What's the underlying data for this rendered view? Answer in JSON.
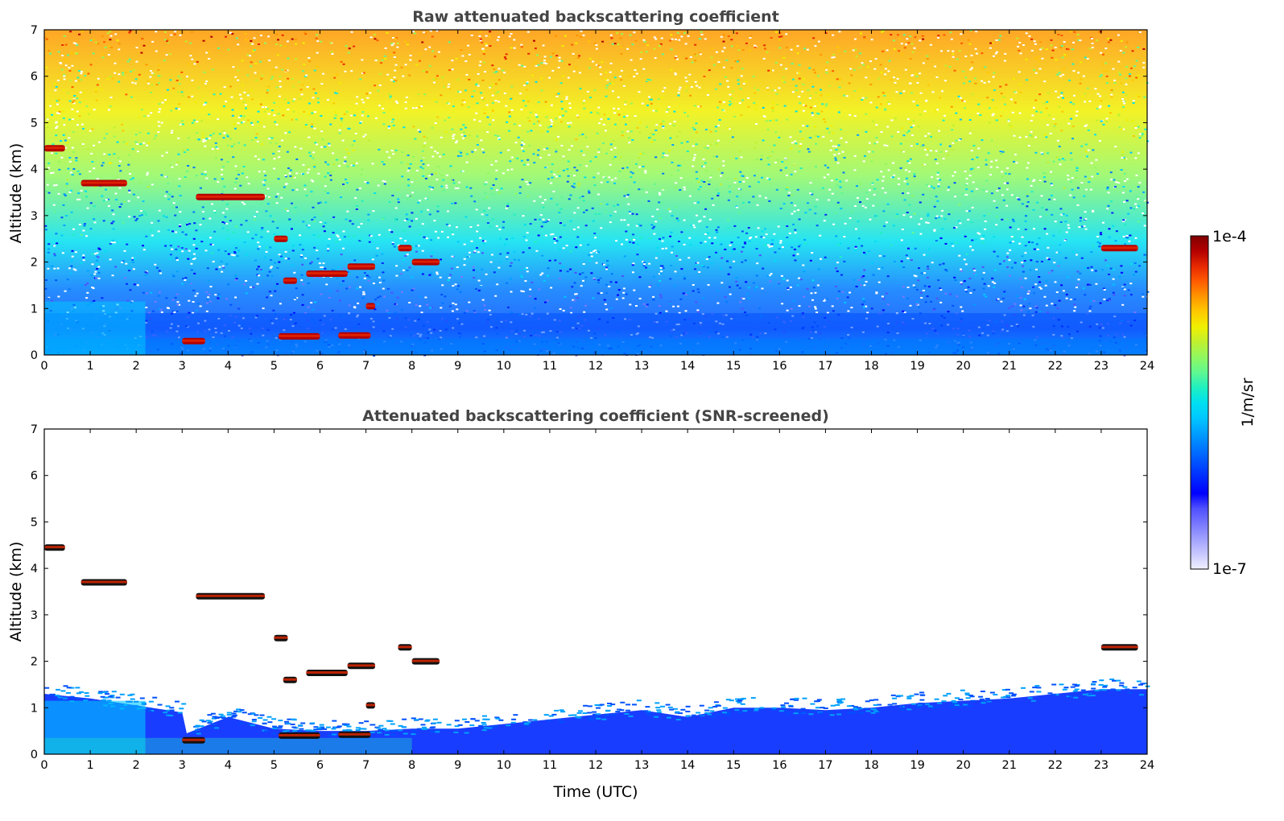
{
  "chart_data": [
    {
      "type": "heatmap",
      "title": "Raw attenuated backscattering coefficient",
      "xlabel": "",
      "ylabel": "Altitude (km)",
      "xlim": [
        0,
        24
      ],
      "ylim": [
        0,
        7
      ],
      "xticks": [
        "0",
        "1",
        "2",
        "3",
        "4",
        "5",
        "6",
        "7",
        "8",
        "9",
        "10",
        "11",
        "12",
        "13",
        "14",
        "15",
        "16",
        "17",
        "18",
        "19",
        "20",
        "21",
        "22",
        "23",
        "24"
      ],
      "yticks": [
        "0",
        "1",
        "2",
        "3",
        "4",
        "5",
        "6",
        "7"
      ],
      "noise_field": true,
      "cloud_layers": [
        {
          "t_start": 0.0,
          "t_end": 0.45,
          "altitude": 4.45
        },
        {
          "t_start": 0.8,
          "t_end": 1.8,
          "altitude": 3.7
        },
        {
          "t_start": 3.3,
          "t_end": 4.8,
          "altitude": 3.4
        },
        {
          "t_start": 5.0,
          "t_end": 5.3,
          "altitude": 2.5
        },
        {
          "t_start": 5.2,
          "t_end": 5.5,
          "altitude": 1.6
        },
        {
          "t_start": 5.7,
          "t_end": 6.6,
          "altitude": 1.75
        },
        {
          "t_start": 6.6,
          "t_end": 7.2,
          "altitude": 1.9
        },
        {
          "t_start": 7.0,
          "t_end": 7.2,
          "altitude": 1.05
        },
        {
          "t_start": 7.7,
          "t_end": 8.0,
          "altitude": 2.3
        },
        {
          "t_start": 8.0,
          "t_end": 8.6,
          "altitude": 2.0
        },
        {
          "t_start": 23.0,
          "t_end": 23.8,
          "altitude": 2.3
        },
        {
          "t_start": 3.0,
          "t_end": 3.5,
          "altitude": 0.3
        },
        {
          "t_start": 5.1,
          "t_end": 6.0,
          "altitude": 0.4
        },
        {
          "t_start": 6.4,
          "t_end": 7.1,
          "altitude": 0.42
        }
      ]
    },
    {
      "type": "heatmap",
      "title": "Attenuated backscattering coefficient (SNR-screened)",
      "xlabel": "Time (UTC)",
      "ylabel": "Altitude (km)",
      "xlim": [
        0,
        24
      ],
      "ylim": [
        0,
        7
      ],
      "xticks": [
        "0",
        "1",
        "2",
        "3",
        "4",
        "5",
        "6",
        "7",
        "8",
        "9",
        "10",
        "11",
        "12",
        "13",
        "14",
        "15",
        "16",
        "17",
        "18",
        "19",
        "20",
        "21",
        "22",
        "23",
        "24"
      ],
      "yticks": [
        "0",
        "1",
        "2",
        "3",
        "4",
        "5",
        "6",
        "7"
      ],
      "noise_field": false,
      "boundary_layer_top": {
        "t": [
          0,
          1,
          2,
          3,
          3.1,
          4,
          5,
          6,
          7,
          8,
          9,
          10,
          11,
          12,
          13,
          14,
          15,
          16,
          17,
          18,
          19,
          20,
          21,
          22,
          23,
          24
        ],
        "altitude": [
          1.3,
          1.2,
          1.05,
          0.9,
          0.45,
          0.8,
          0.55,
          0.5,
          0.5,
          0.55,
          0.55,
          0.65,
          0.75,
          0.85,
          0.95,
          0.8,
          1.0,
          1.0,
          0.95,
          1.0,
          1.1,
          1.15,
          1.2,
          1.3,
          1.4,
          1.4
        ]
      },
      "cloud_layers": [
        {
          "t_start": 0.0,
          "t_end": 0.45,
          "altitude": 4.45
        },
        {
          "t_start": 0.8,
          "t_end": 1.8,
          "altitude": 3.7
        },
        {
          "t_start": 3.3,
          "t_end": 4.8,
          "altitude": 3.4
        },
        {
          "t_start": 5.0,
          "t_end": 5.3,
          "altitude": 2.5
        },
        {
          "t_start": 5.2,
          "t_end": 5.5,
          "altitude": 1.6
        },
        {
          "t_start": 5.7,
          "t_end": 6.6,
          "altitude": 1.75
        },
        {
          "t_start": 6.6,
          "t_end": 7.2,
          "altitude": 1.9
        },
        {
          "t_start": 7.0,
          "t_end": 7.2,
          "altitude": 1.05
        },
        {
          "t_start": 7.7,
          "t_end": 8.0,
          "altitude": 2.3
        },
        {
          "t_start": 8.0,
          "t_end": 8.6,
          "altitude": 2.0
        },
        {
          "t_start": 23.0,
          "t_end": 23.8,
          "altitude": 2.3
        },
        {
          "t_start": 3.0,
          "t_end": 3.5,
          "altitude": 0.3
        },
        {
          "t_start": 5.1,
          "t_end": 6.0,
          "altitude": 0.4
        },
        {
          "t_start": 6.4,
          "t_end": 7.1,
          "altitude": 0.42
        }
      ]
    }
  ],
  "colorbar": {
    "max_label": "1e-4",
    "min_label": "1e-7",
    "unit_label": "1/m/sr",
    "colors": [
      "#f0f0ff",
      "#c8c8ff",
      "#a0a0ff",
      "#7878ff",
      "#5050ff",
      "#0000ff",
      "#0028ff",
      "#0050ff",
      "#0078ff",
      "#00a0ff",
      "#00c8ff",
      "#00e0f0",
      "#20f0c0",
      "#60f890",
      "#90f860",
      "#c0f030",
      "#f0f000",
      "#ffc800",
      "#ff9600",
      "#ff5a00",
      "#e62800",
      "#b40000",
      "#800000"
    ]
  }
}
